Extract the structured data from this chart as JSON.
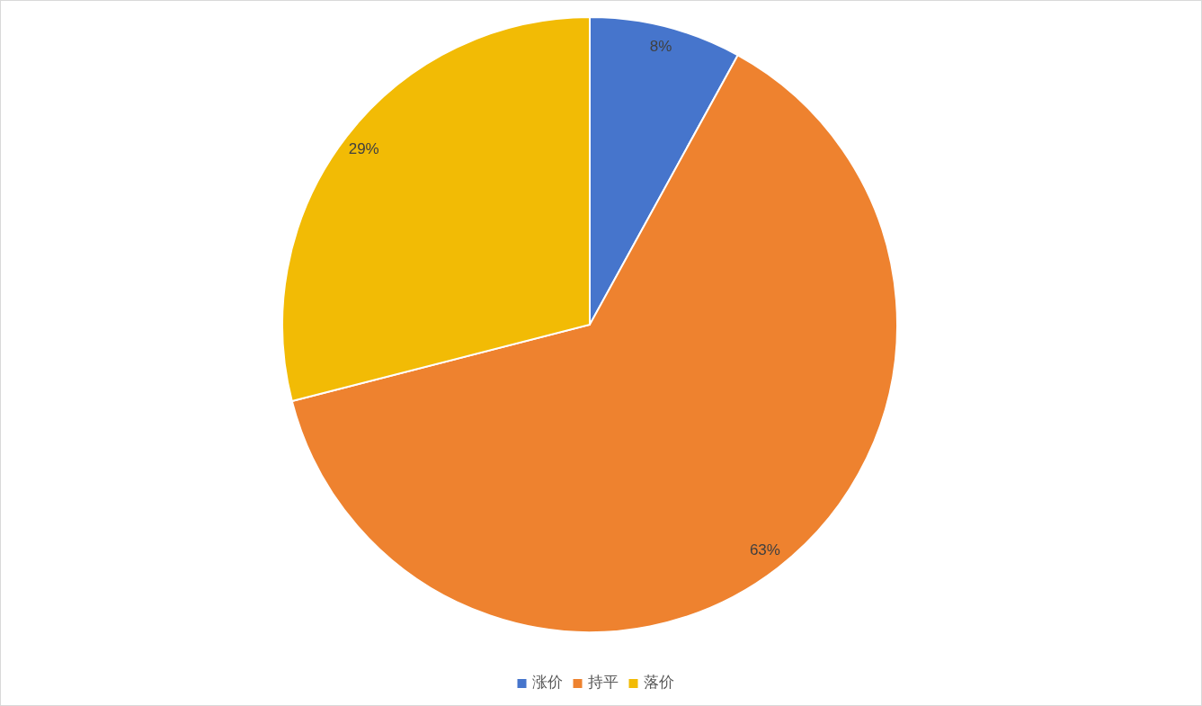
{
  "chart_data": {
    "type": "pie",
    "categories": [
      "涨价",
      "持平",
      "落价"
    ],
    "values": [
      8,
      63,
      29
    ],
    "colors": [
      "#4675cc",
      "#ee822f",
      "#f2bb05"
    ],
    "value_labels": [
      "8%",
      "63%",
      "29%"
    ],
    "legend": "bottom"
  }
}
